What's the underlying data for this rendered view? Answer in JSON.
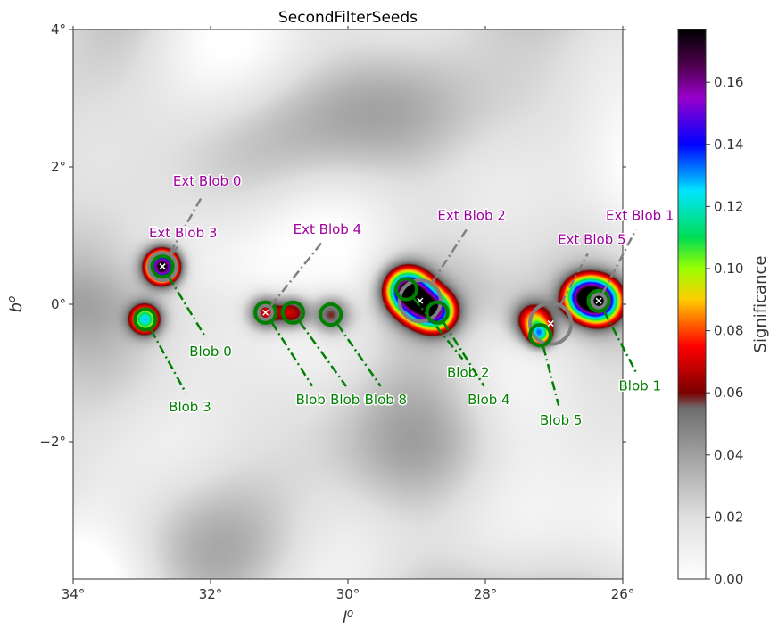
{
  "chart_data": {
    "type": "heatmap",
    "title": "SecondFilterSeeds",
    "xlabel": "l",
    "xlabel_sup": "o",
    "ylabel": "b",
    "ylabel_sup": "o",
    "xlim": [
      34,
      26
    ],
    "ylim": [
      -4,
      4
    ],
    "x_ticks": [
      {
        "value": 34,
        "label": "34°"
      },
      {
        "value": 32,
        "label": "32°"
      },
      {
        "value": 30,
        "label": "30°"
      },
      {
        "value": 28,
        "label": "28°"
      },
      {
        "value": 26,
        "label": "26°"
      }
    ],
    "y_ticks": [
      {
        "value": 4,
        "label": "4°"
      },
      {
        "value": 2,
        "label": "2°"
      },
      {
        "value": 0,
        "label": "0°"
      },
      {
        "value": -2,
        "label": "−2°"
      }
    ],
    "colorbar": {
      "label": "Significance",
      "min": 0.0,
      "max": 0.177,
      "ticks": [
        {
          "value": 0.0,
          "label": "0.00"
        },
        {
          "value": 0.02,
          "label": "0.02"
        },
        {
          "value": 0.04,
          "label": "0.04"
        },
        {
          "value": 0.06,
          "label": "0.06"
        },
        {
          "value": 0.08,
          "label": "0.08"
        },
        {
          "value": 0.1,
          "label": "0.10"
        },
        {
          "value": 0.12,
          "label": "0.12"
        },
        {
          "value": 0.14,
          "label": "0.14"
        },
        {
          "value": 0.16,
          "label": "0.16"
        }
      ],
      "stops": [
        {
          "v": 0.0,
          "color": "#ffffff"
        },
        {
          "v": 0.02,
          "color": "#e0e0e0"
        },
        {
          "v": 0.04,
          "color": "#a0a0a0"
        },
        {
          "v": 0.055,
          "color": "#6e6e6e"
        },
        {
          "v": 0.06,
          "color": "#7a0000"
        },
        {
          "v": 0.075,
          "color": "#ff0000"
        },
        {
          "v": 0.09,
          "color": "#ffcc00"
        },
        {
          "v": 0.1,
          "color": "#99ff00"
        },
        {
          "v": 0.11,
          "color": "#00dd55"
        },
        {
          "v": 0.125,
          "color": "#00e5ff"
        },
        {
          "v": 0.14,
          "color": "#0000ff"
        },
        {
          "v": 0.155,
          "color": "#9900cc"
        },
        {
          "v": 0.165,
          "color": "#500050"
        },
        {
          "v": 0.177,
          "color": "#000000"
        }
      ]
    },
    "sources": [
      {
        "l": 32.7,
        "b": 0.55,
        "peak": 0.165,
        "sigma": 0.17
      },
      {
        "l": 32.95,
        "b": -0.22,
        "peak": 0.1,
        "sigma": 0.15
      },
      {
        "l": 31.2,
        "b": -0.12,
        "peak": 0.058,
        "sigma": 0.18
      },
      {
        "l": 30.8,
        "b": -0.12,
        "peak": 0.056,
        "sigma": 0.17
      },
      {
        "l": 30.25,
        "b": -0.15,
        "peak": 0.05,
        "sigma": 0.2
      },
      {
        "l": 29.15,
        "b": 0.22,
        "peak": 0.13,
        "sigma": 0.22
      },
      {
        "l": 28.95,
        "b": 0.0,
        "peak": 0.09,
        "sigma": 0.22
      },
      {
        "l": 28.7,
        "b": -0.12,
        "peak": 0.095,
        "sigma": 0.2
      },
      {
        "l": 27.3,
        "b": -0.25,
        "peak": 0.07,
        "sigma": 0.2
      },
      {
        "l": 27.2,
        "b": -0.45,
        "peak": 0.075,
        "sigma": 0.12
      },
      {
        "l": 26.35,
        "b": 0.05,
        "peak": 0.15,
        "sigma": 0.22
      },
      {
        "l": 26.6,
        "b": 0.12,
        "peak": 0.09,
        "sigma": 0.2
      }
    ],
    "blobs": [
      {
        "name": "Blob 0",
        "l": 32.7,
        "b": 0.55,
        "radius": 0.15,
        "label_l": 32.0,
        "label_b": -0.6
      },
      {
        "name": "Blob 3",
        "l": 32.95,
        "b": -0.22,
        "radius": 0.15,
        "label_l": 32.3,
        "label_b": -1.4
      },
      {
        "name": "Blob 7",
        "l": 31.2,
        "b": -0.12,
        "radius": 0.15,
        "label_l": 30.45,
        "label_b": -1.3
      },
      {
        "name": "Blob 6",
        "l": 30.8,
        "b": -0.12,
        "radius": 0.15,
        "label_l": 29.95,
        "label_b": -1.3
      },
      {
        "name": "Blob 8",
        "l": 30.25,
        "b": -0.15,
        "radius": 0.15,
        "label_l": 29.45,
        "label_b": -1.3
      },
      {
        "name": "Blob 2",
        "l": 29.15,
        "b": 0.22,
        "radius": 0.15,
        "label_l": 28.25,
        "label_b": -0.9
      },
      {
        "name": "Blob 4",
        "l": 28.7,
        "b": -0.12,
        "radius": 0.15,
        "label_l": 27.95,
        "label_b": -1.3
      },
      {
        "name": "Blob 5",
        "l": 27.2,
        "b": -0.45,
        "radius": 0.15,
        "label_l": 26.9,
        "label_b": -1.6
      },
      {
        "name": "Blob 1",
        "l": 26.35,
        "b": 0.05,
        "radius": 0.15,
        "label_l": 25.75,
        "label_b": -1.1
      }
    ],
    "ext_blobs": [
      {
        "name": "Ext Blob 0",
        "l": 32.7,
        "b": 0.55,
        "radius": 0.2,
        "label_l": 32.05,
        "label_b": 1.7
      },
      {
        "name": "Ext Blob 3",
        "l": 32.7,
        "b": 0.55,
        "radius": 0.2,
        "label_l": 32.4,
        "label_b": 0.95
      },
      {
        "name": "Ext Blob 4",
        "l": 31.2,
        "b": -0.12,
        "radius": 0.1,
        "label_l": 30.3,
        "label_b": 1.0
      },
      {
        "name": "Ext Blob 2",
        "l": 28.95,
        "b": 0.05,
        "radius": 0.3,
        "label_l": 28.2,
        "label_b": 1.2
      },
      {
        "name": "Ext Blob 5",
        "l": 27.05,
        "b": -0.28,
        "radius": 0.3,
        "label_l": 26.45,
        "label_b": 0.85
      },
      {
        "name": "Ext Blob 1",
        "l": 26.35,
        "b": 0.05,
        "radius": 0.1,
        "label_l": 25.75,
        "label_b": 1.2
      }
    ]
  }
}
